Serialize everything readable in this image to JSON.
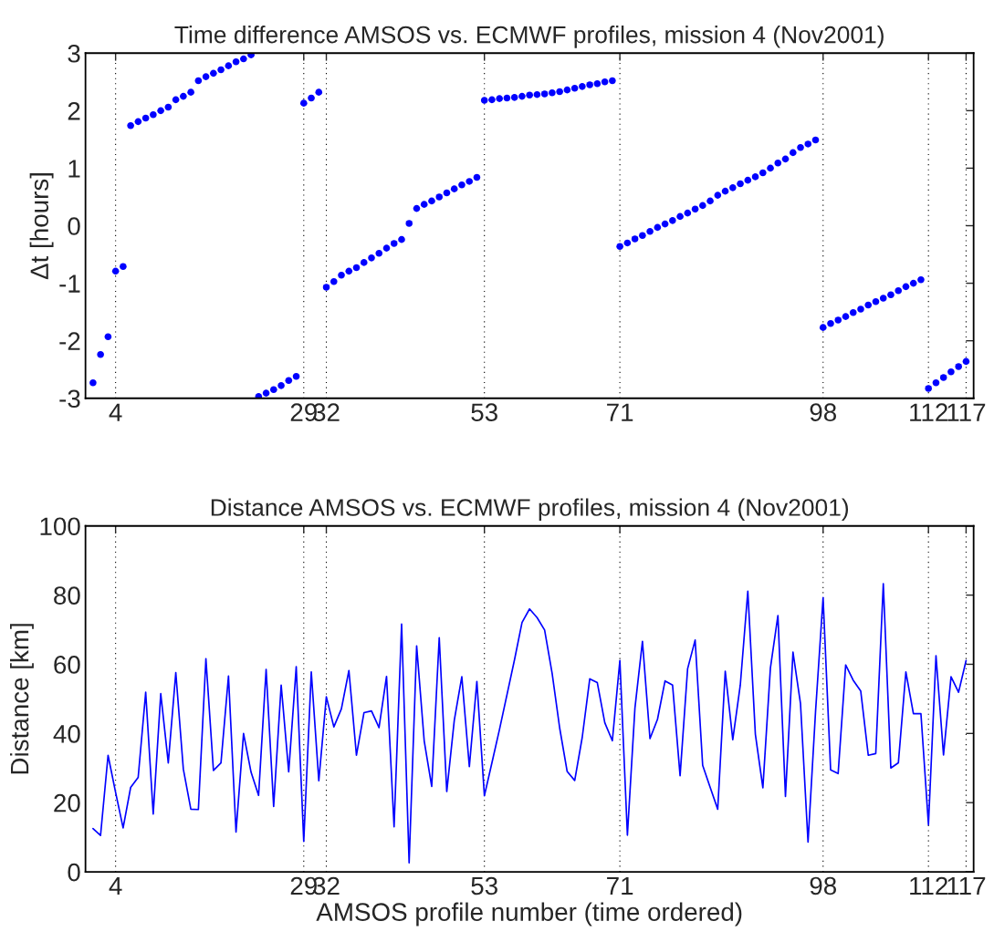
{
  "chart_data": [
    {
      "type": "scatter",
      "title": "Time difference AMSOS vs. ECMWF profiles, mission 4 (Nov2001)",
      "ylabel": "Δt [hours]",
      "marker": "circle",
      "grid": "x",
      "xlim": [
        0,
        118
      ],
      "xticks": [
        4,
        29,
        32,
        53,
        71,
        98,
        112,
        117
      ],
      "ylim": [
        -3,
        3
      ],
      "yticks": [
        -3,
        -2,
        -1,
        0,
        1,
        2,
        3
      ],
      "x": [
        1,
        2,
        3,
        4,
        5,
        6,
        7,
        8,
        9,
        10,
        11,
        12,
        13,
        14,
        15,
        16,
        17,
        18,
        19,
        20,
        21,
        22,
        23,
        24,
        25,
        26,
        27,
        28,
        29,
        30,
        31,
        32,
        33,
        34,
        35,
        36,
        37,
        38,
        39,
        40,
        41,
        42,
        43,
        44,
        45,
        46,
        47,
        48,
        49,
        50,
        51,
        52,
        53,
        54,
        55,
        56,
        57,
        58,
        59,
        60,
        61,
        62,
        63,
        64,
        65,
        66,
        67,
        68,
        69,
        70,
        71,
        72,
        73,
        74,
        75,
        76,
        77,
        78,
        79,
        80,
        81,
        82,
        83,
        84,
        85,
        86,
        87,
        88,
        89,
        90,
        91,
        92,
        93,
        94,
        95,
        96,
        97,
        98,
        99,
        100,
        101,
        102,
        103,
        104,
        105,
        106,
        107,
        108,
        109,
        110,
        111,
        112,
        113,
        114,
        115,
        116,
        117
      ],
      "series": [
        {
          "color": "#0000ff",
          "values": [
            -2.73,
            -2.24,
            -1.93,
            -0.79,
            -0.71,
            1.74,
            1.81,
            1.87,
            1.93,
            2.0,
            2.06,
            2.19,
            2.25,
            2.32,
            2.52,
            2.59,
            2.65,
            2.71,
            2.78,
            2.85,
            2.9,
            2.97,
            -2.97,
            -2.91,
            -2.85,
            -2.78,
            -2.69,
            -2.62,
            2.13,
            2.22,
            2.32,
            -1.07,
            -0.97,
            -0.86,
            -0.79,
            -0.73,
            -0.64,
            -0.56,
            -0.48,
            -0.39,
            -0.31,
            -0.24,
            0.04,
            0.3,
            0.37,
            0.43,
            0.5,
            0.57,
            0.64,
            0.71,
            0.77,
            0.84,
            2.18,
            2.19,
            2.21,
            2.22,
            2.23,
            2.25,
            2.27,
            2.28,
            2.29,
            2.31,
            2.33,
            2.36,
            2.39,
            2.42,
            2.45,
            2.47,
            2.5,
            2.52,
            -0.36,
            -0.3,
            -0.23,
            -0.17,
            -0.1,
            -0.03,
            0.03,
            0.09,
            0.16,
            0.22,
            0.29,
            0.35,
            0.43,
            0.53,
            0.6,
            0.66,
            0.73,
            0.79,
            0.85,
            0.92,
            1.0,
            1.09,
            1.16,
            1.27,
            1.36,
            1.42,
            1.49,
            -1.77,
            -1.7,
            -1.64,
            -1.58,
            -1.51,
            -1.45,
            -1.38,
            -1.32,
            -1.26,
            -1.2,
            -1.13,
            -1.06,
            -1.0,
            -0.94,
            -2.83,
            -2.73,
            -2.64,
            -2.54,
            -2.45,
            -2.36
          ]
        }
      ]
    },
    {
      "type": "line",
      "title": "Distance AMSOS vs. ECMWF profiles, mission 4 (Nov2001)",
      "xlabel": "AMSOS profile number (time ordered)",
      "ylabel": "Distance [km]",
      "grid": "x",
      "line_style": "solid",
      "xlim": [
        0,
        118
      ],
      "xticks": [
        4,
        29,
        32,
        53,
        71,
        98,
        112,
        117
      ],
      "ylim": [
        0,
        100
      ],
      "yticks": [
        0,
        20,
        40,
        60,
        80,
        100
      ],
      "x": [
        1,
        2,
        3,
        4,
        5,
        6,
        7,
        8,
        9,
        10,
        11,
        12,
        13,
        14,
        15,
        16,
        17,
        18,
        19,
        20,
        21,
        22,
        23,
        24,
        25,
        26,
        27,
        28,
        29,
        30,
        31,
        32,
        33,
        34,
        35,
        36,
        37,
        38,
        39,
        40,
        41,
        42,
        43,
        44,
        45,
        46,
        47,
        48,
        49,
        50,
        51,
        52,
        53,
        54,
        55,
        56,
        57,
        58,
        59,
        60,
        61,
        62,
        63,
        64,
        65,
        66,
        67,
        68,
        69,
        70,
        71,
        72,
        73,
        74,
        75,
        76,
        77,
        78,
        79,
        80,
        81,
        82,
        83,
        84,
        85,
        86,
        87,
        88,
        89,
        90,
        91,
        92,
        93,
        94,
        95,
        96,
        97,
        98,
        99,
        100,
        101,
        102,
        103,
        104,
        105,
        106,
        107,
        108,
        109,
        110,
        111,
        112,
        113,
        114,
        115,
        116,
        117
      ],
      "series": [
        {
          "color": "#0000ff",
          "values": [
            12.5,
            10.5,
            33.7,
            23,
            12.7,
            24.4,
            27.3,
            51.9,
            16.7,
            51.5,
            31.5,
            57.6,
            29.7,
            18.1,
            18.0,
            61.6,
            29.3,
            31.5,
            56.6,
            11.5,
            40.0,
            28.8,
            22.1,
            58.5,
            18.9,
            54.0,
            28.9,
            59.3,
            8.8,
            57.8,
            26.3,
            50.6,
            41.9,
            47.1,
            58.2,
            33.7,
            46.0,
            46.5,
            41.7,
            56.5,
            13.0,
            71.6,
            2.6,
            65.3,
            37.9,
            24.7,
            67.7,
            23.2,
            43.8,
            56.4,
            30.4,
            55.0,
            22.0,
            31.5,
            41.1,
            51.2,
            61.3,
            72.1,
            76.0,
            73.5,
            69.9,
            57.4,
            41.6,
            29.0,
            26.4,
            38.9,
            55.8,
            54.7,
            43.1,
            37.9,
            61.1,
            10.6,
            47.3,
            66.6,
            38.5,
            44.1,
            55.2,
            54.0,
            27.8,
            58.7,
            67.0,
            30.8,
            24.4,
            18.1,
            58.0,
            38.2,
            54.0,
            81.1,
            39.8,
            24.3,
            58.9,
            74.1,
            21.8,
            63.5,
            48.6,
            8.6,
            46.4,
            79.3,
            29.5,
            28.4,
            59.8,
            55.4,
            52.3,
            33.7,
            34.2,
            83.3,
            30.0,
            31.5,
            57.8,
            45.7,
            45.7,
            13.6,
            62.5,
            33.8,
            56.4,
            51.9,
            61.1
          ]
        }
      ]
    }
  ]
}
